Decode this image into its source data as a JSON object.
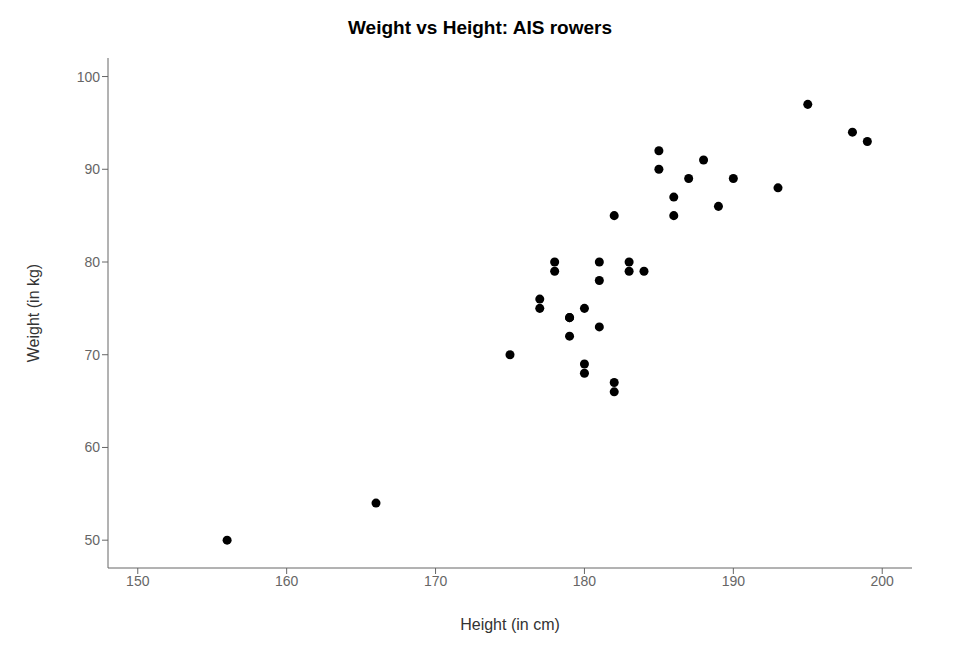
{
  "chart_data": {
    "type": "scatter",
    "title": "Weight vs Height: AIS rowers",
    "x_label": "Height (in cm)",
    "y_label": "Weight (in kg)",
    "x": [
      156,
      166,
      175,
      177,
      177,
      178,
      178,
      179,
      179,
      179,
      180,
      180,
      180,
      181,
      181,
      181,
      182,
      182,
      182,
      183,
      183,
      184,
      185,
      185,
      186,
      186,
      187,
      188,
      189,
      190,
      193,
      195,
      198,
      199
    ],
    "values": [
      50,
      54,
      70,
      76,
      75,
      80,
      79,
      74,
      74,
      72,
      75,
      69,
      68,
      78,
      80,
      73,
      67,
      66,
      85,
      80,
      79,
      79,
      90,
      92,
      87,
      85,
      89,
      91,
      86,
      89,
      88,
      97,
      94,
      93
    ],
    "color": "#000000",
    "xlim": [
      148,
      202
    ],
    "ylim": [
      47,
      102
    ],
    "xticks": [
      150,
      160,
      170,
      180,
      190,
      200
    ],
    "yticks": [
      50,
      60,
      70,
      80,
      90,
      100
    ],
    "grid": false
  }
}
